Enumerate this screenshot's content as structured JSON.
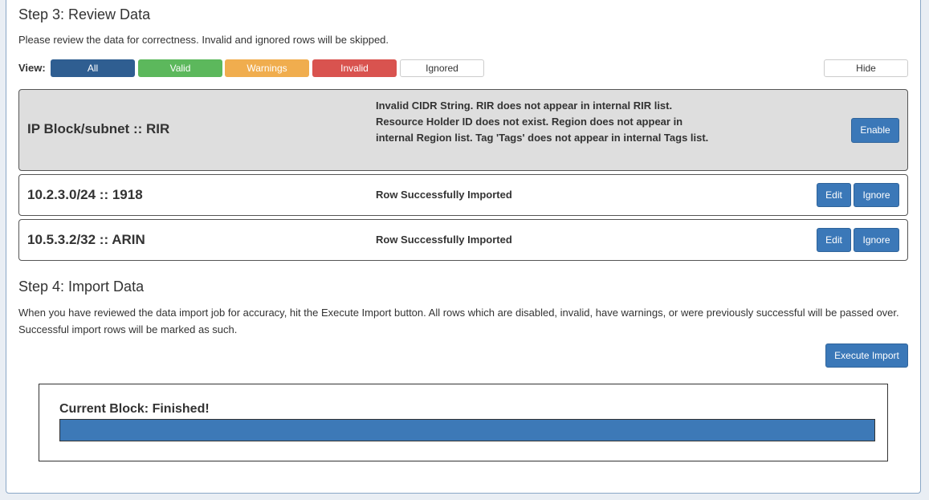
{
  "step3": {
    "title": "Step 3: Review Data",
    "description": "Please review the data for correctness. Invalid and ignored rows will be skipped.",
    "view_label": "View:",
    "filters": [
      {
        "label": "All",
        "color": "#2f5e91"
      },
      {
        "label": "Valid",
        "color": "#5cb85c"
      },
      {
        "label": "Warnings",
        "color": "#f0ad4e"
      },
      {
        "label": "Invalid",
        "color": "#d9534f"
      },
      {
        "label": "Ignored",
        "color": "#ffffff"
      }
    ],
    "hide_label": "Hide",
    "rows": [
      {
        "title": "IP Block/subnet :: RIR",
        "message": "Invalid CIDR String. RIR does not appear in internal RIR list. Resource Holder ID does not exist. Region does not appear in internal Region list. Tag 'Tags' does not appear in internal Tags list.",
        "enable_label": "Enable"
      },
      {
        "title": "10.2.3.0/24 :: 1918",
        "message": "Row Successfully Imported",
        "edit_label": "Edit",
        "ignore_label": "Ignore"
      },
      {
        "title": "10.5.3.2/32 :: ARIN",
        "message": "Row Successfully Imported",
        "edit_label": "Edit",
        "ignore_label": "Ignore"
      }
    ]
  },
  "step4": {
    "title": "Step 4: Import Data",
    "description": "When you have reviewed the data import job for accuracy, hit the Execute Import button. All rows which are disabled, invalid, have warnings, or were previously successful will be passed over. Successful import rows will be marked as such.",
    "execute_label": "Execute Import"
  },
  "progress": {
    "label": "Current Block: Finished!",
    "percent": 100,
    "color": "#3d79b7"
  }
}
